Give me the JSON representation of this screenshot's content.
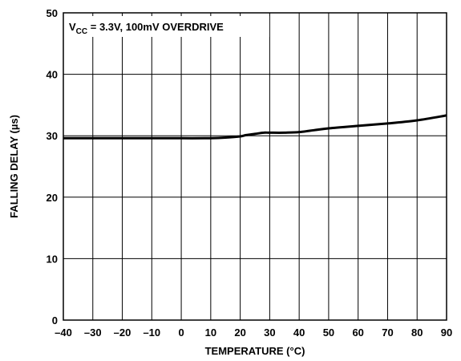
{
  "chart_data": {
    "type": "line",
    "annotation": {
      "prefix": "V",
      "subscript": "CC",
      "suffix": " = 3.3V, 100mV OVERDRIVE"
    },
    "xlabel": "TEMPERATURE (°C)",
    "ylabel": "FALLING DELAY (µs)",
    "xlim": [
      -40,
      90
    ],
    "ylim": [
      0,
      50
    ],
    "x_ticks": [
      -40,
      -30,
      -20,
      -10,
      0,
      10,
      20,
      30,
      40,
      50,
      60,
      70,
      80,
      90
    ],
    "x_tick_labels": [
      "–40",
      "–30",
      "–20",
      "–10",
      "0",
      "10",
      "20",
      "30",
      "40",
      "50",
      "60",
      "70",
      "80",
      "90"
    ],
    "y_ticks": [
      0,
      10,
      20,
      30,
      40,
      50
    ],
    "y_tick_labels": [
      "0",
      "10",
      "20",
      "30",
      "40",
      "50"
    ],
    "grid": true,
    "series": [
      {
        "color": "#000000",
        "x": [
          -40,
          -30,
          -20,
          -10,
          0,
          10,
          15,
          20,
          22,
          25,
          28,
          30,
          35,
          40,
          45,
          50,
          60,
          70,
          80,
          90
        ],
        "y": [
          29.6,
          29.6,
          29.6,
          29.6,
          29.6,
          29.6,
          29.7,
          29.9,
          30.1,
          30.3,
          30.5,
          30.5,
          30.5,
          30.6,
          30.9,
          31.2,
          31.6,
          32.0,
          32.5,
          33.3
        ]
      }
    ]
  }
}
